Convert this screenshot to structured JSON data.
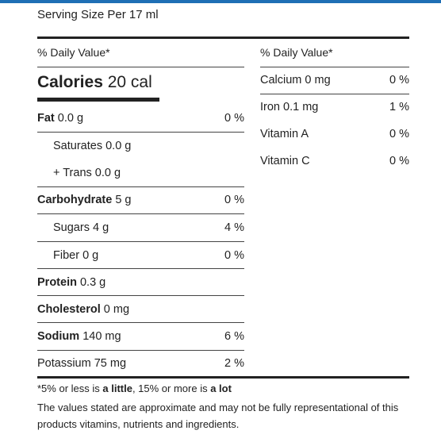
{
  "header": {
    "serving_size": "Serving Size Per 17 ml"
  },
  "left": {
    "daily_value_label": "% Daily Value*",
    "calories_label": "Calories",
    "calories_value": "20 cal",
    "rows": [
      {
        "name": "Fat",
        "amount": "0.0 g",
        "pct": "0 %"
      },
      {
        "name": "Saturates",
        "amount": "0.0 g",
        "pct": ""
      },
      {
        "name": "+ Trans",
        "amount": "0.0 g",
        "pct": ""
      },
      {
        "name": "Carbohydrate",
        "amount": "5 g",
        "pct": "0 %"
      },
      {
        "name": "Sugars",
        "amount": "4 g",
        "pct": "4 %"
      },
      {
        "name": "Fiber",
        "amount": "0 g",
        "pct": "0 %"
      },
      {
        "name": "Protein",
        "amount": "0.3 g",
        "pct": ""
      },
      {
        "name": "Cholesterol",
        "amount": "0 mg",
        "pct": ""
      },
      {
        "name": "Sodium",
        "amount": "140 mg",
        "pct": "6 %"
      },
      {
        "name": "Potassium",
        "amount": "75 mg",
        "pct": "2 %"
      }
    ]
  },
  "right": {
    "daily_value_label": "% Daily Value*",
    "rows": [
      {
        "name": "Calcium",
        "amount": "0 mg",
        "pct": "0 %"
      },
      {
        "name": "Iron",
        "amount": "0.1 mg",
        "pct": "1 %"
      },
      {
        "name": "Vitamin A",
        "amount": "",
        "pct": "0 %"
      },
      {
        "name": "Vitamin C",
        "amount": "",
        "pct": "0 %"
      }
    ]
  },
  "footer": {
    "note_prefix": "*5% or less is ",
    "note_little": "a little",
    "note_middle": ", 15% or more is ",
    "note_lot": "a lot",
    "disclaimer": "The values stated are approximate and may not be fully representational of this products vitamins, nutrients and ingredients."
  }
}
